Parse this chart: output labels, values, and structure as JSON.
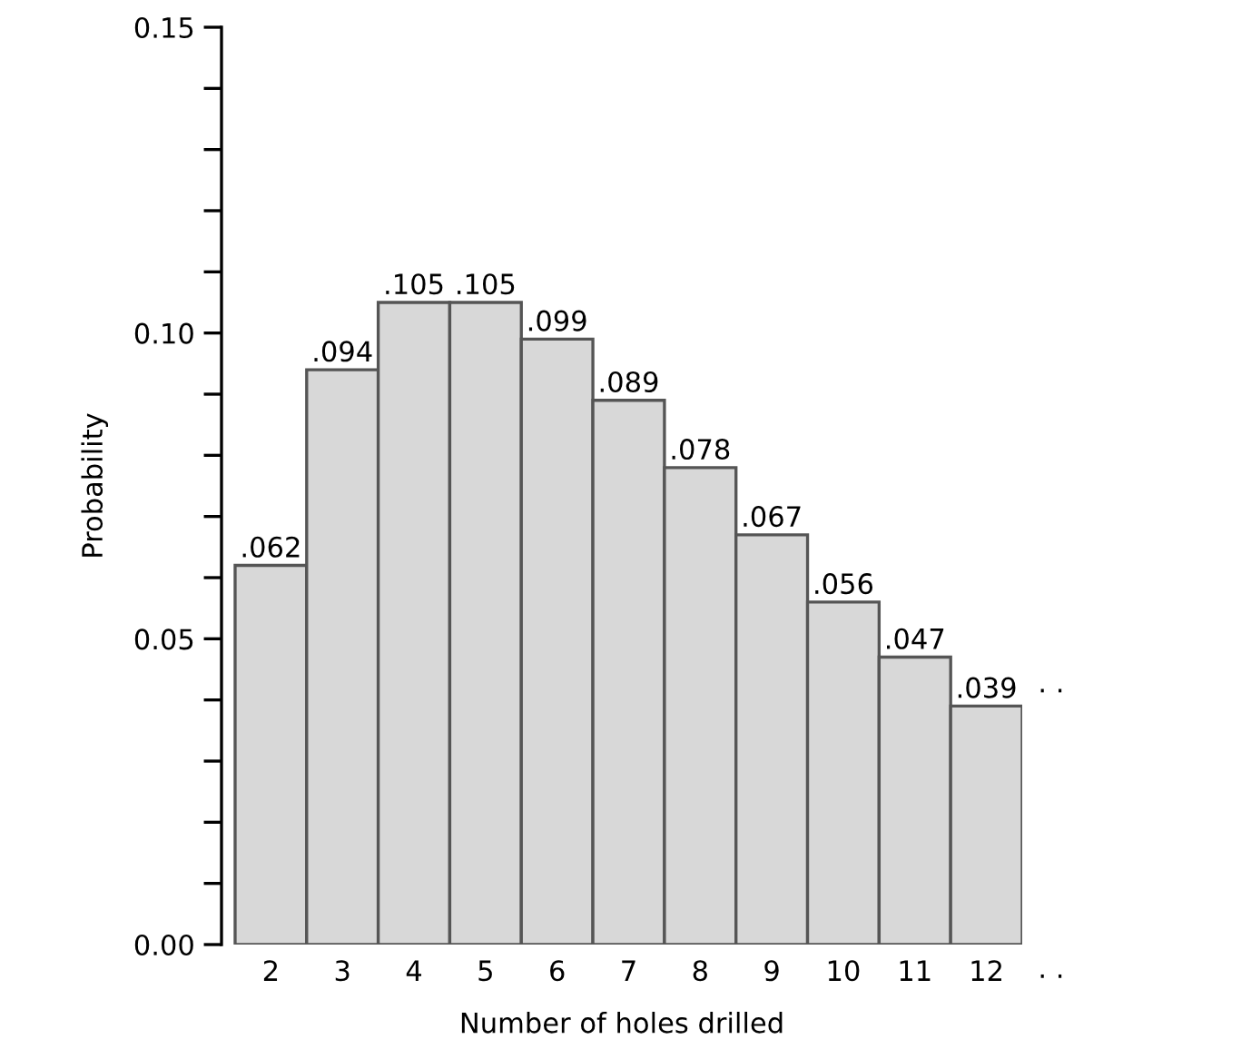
{
  "chart_data": {
    "type": "bar",
    "xlabel": "Number of holes drilled",
    "ylabel": "Probability",
    "categories": [
      "2",
      "3",
      "4",
      "5",
      "6",
      "7",
      "8",
      "9",
      "10",
      "11",
      "12"
    ],
    "values": [
      0.062,
      0.094,
      0.105,
      0.105,
      0.099,
      0.089,
      0.078,
      0.067,
      0.056,
      0.047,
      0.039
    ],
    "value_labels": [
      ".062",
      ".094",
      ".105",
      ".105",
      ".099",
      ".089",
      ".078",
      ".067",
      ".056",
      ".047",
      ".039"
    ],
    "color": "#d8d8d8",
    "ylim": [
      0,
      0.15
    ],
    "yticks": [
      {
        "value": 0,
        "label": "0.00"
      },
      {
        "value": 0.01,
        "label": null
      },
      {
        "value": 0.02,
        "label": null
      },
      {
        "value": 0.03,
        "label": null
      },
      {
        "value": 0.04,
        "label": null
      },
      {
        "value": 0.05,
        "label": "0.05"
      },
      {
        "value": 0.06,
        "label": null
      },
      {
        "value": 0.07,
        "label": null
      },
      {
        "value": 0.08,
        "label": null
      },
      {
        "value": 0.09,
        "label": null
      },
      {
        "value": 0.1,
        "label": "0.10"
      },
      {
        "value": 0.11,
        "label": null
      },
      {
        "value": 0.12,
        "label": null
      },
      {
        "value": 0.13,
        "label": null
      },
      {
        "value": 0.14,
        "label": null
      },
      {
        "value": 0.15,
        "label": "0.15"
      }
    ],
    "annotations": [
      "· ·",
      "· ·"
    ],
    "grid": false,
    "legend": false
  }
}
